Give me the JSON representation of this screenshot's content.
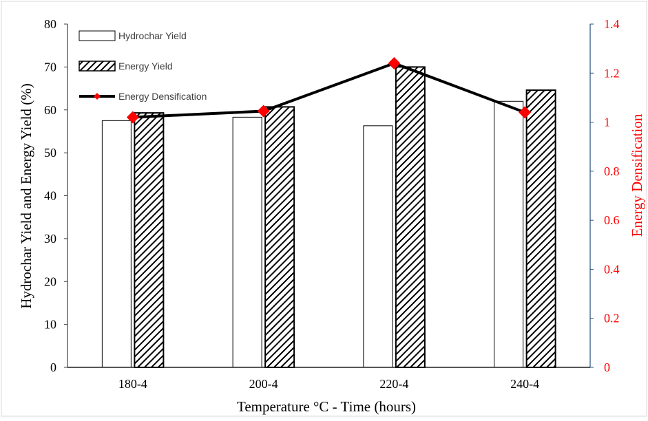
{
  "chart_data": {
    "type": "bar",
    "categories": [
      "180-4",
      "200-4",
      "220-4",
      "240-4"
    ],
    "xlabel": "Temperature °C - Time (hours)",
    "ylabel": "Hydrochar Yield and Energy Yield (%)",
    "y2label": "Energy Densification",
    "ylim": [
      0,
      80
    ],
    "yticks": [
      "0",
      "10",
      "20",
      "30",
      "40",
      "50",
      "60",
      "70",
      "80"
    ],
    "y2lim": [
      0,
      1.4
    ],
    "y2ticks": [
      "0",
      "0.2",
      "0.4",
      "0.6",
      "0.8",
      "1",
      "1.2",
      "1.4"
    ],
    "grid": false,
    "legend_position": "top-left",
    "series": [
      {
        "name": "Hydrochar Yield",
        "kind": "bar",
        "axis": "left",
        "fill": "none",
        "values": [
          57.5,
          58.3,
          56.3,
          62.0
        ]
      },
      {
        "name": "Energy Yield",
        "kind": "bar",
        "axis": "left",
        "fill": "hatch",
        "values": [
          59.3,
          60.7,
          70.0,
          64.6
        ]
      },
      {
        "name": "Energy Densification",
        "kind": "line",
        "axis": "right",
        "marker": "diamond",
        "values": [
          1.02,
          1.045,
          1.24,
          1.04
        ]
      }
    ]
  },
  "colors": {
    "axis_left": "#404040",
    "axis_right": "#1f4e79",
    "right_label": "#ff0000",
    "line": "#000000",
    "marker": "#ff0000",
    "bar_outline": "#000000",
    "hatch": "#000000"
  }
}
